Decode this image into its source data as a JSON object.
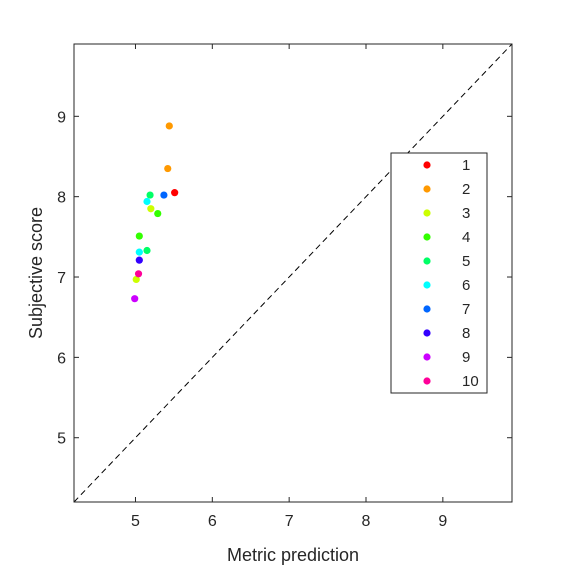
{
  "chart_data": {
    "type": "scatter",
    "title": "",
    "xlabel": "Metric prediction",
    "ylabel": "Subjective score",
    "xlim": [
      4.2,
      9.9
    ],
    "ylim": [
      4.2,
      9.9
    ],
    "xticks": [
      5,
      6,
      7,
      8,
      9
    ],
    "yticks": [
      5,
      6,
      7,
      8,
      9
    ],
    "grid": false,
    "reference_line": "dashed identity line y = x",
    "legend_position": "right",
    "series": [
      {
        "name": "1",
        "color": "#ff0000",
        "points": [
          [
            5.51,
            8.05
          ]
        ]
      },
      {
        "name": "2",
        "color": "#ff9900",
        "points": [
          [
            5.44,
            8.88
          ],
          [
            5.42,
            8.35
          ]
        ]
      },
      {
        "name": "3",
        "color": "#ccff00",
        "points": [
          [
            5.2,
            7.85
          ],
          [
            5.01,
            6.97
          ]
        ]
      },
      {
        "name": "4",
        "color": "#33ff00",
        "points": [
          [
            5.29,
            7.79
          ],
          [
            5.05,
            7.51
          ]
        ]
      },
      {
        "name": "5",
        "color": "#00ff66",
        "points": [
          [
            5.19,
            8.02
          ],
          [
            5.15,
            7.33
          ]
        ]
      },
      {
        "name": "6",
        "color": "#00ffff",
        "points": [
          [
            5.15,
            7.94
          ],
          [
            5.05,
            7.31
          ]
        ]
      },
      {
        "name": "7",
        "color": "#0066ff",
        "points": [
          [
            5.37,
            8.02
          ]
        ]
      },
      {
        "name": "8",
        "color": "#3300ff",
        "points": [
          [
            5.05,
            7.21
          ]
        ]
      },
      {
        "name": "9",
        "color": "#cc00ff",
        "points": [
          [
            4.99,
            6.73
          ]
        ]
      },
      {
        "name": "10",
        "color": "#ff0099",
        "points": [
          [
            5.04,
            7.04
          ]
        ]
      }
    ]
  }
}
